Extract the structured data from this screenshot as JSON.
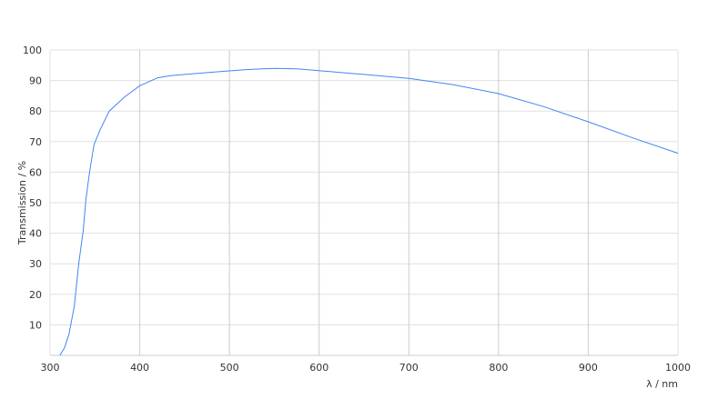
{
  "chart_data": {
    "type": "line",
    "xlabel": "λ / nm",
    "ylabel": "Transmission / %",
    "xlim": [
      300,
      1000
    ],
    "ylim": [
      0,
      100
    ],
    "xticks": [
      300,
      400,
      500,
      600,
      700,
      800,
      900,
      1000
    ],
    "yticks": [
      10,
      20,
      30,
      40,
      50,
      60,
      70,
      80,
      90,
      100
    ],
    "grid": true,
    "line_color": "#4285f4",
    "series": [
      {
        "x": [
          311,
          316,
          321,
          327,
          332,
          337,
          340,
          344,
          349,
          356,
          366,
          383,
          400,
          420,
          434,
          450,
          488,
          520,
          550,
          575,
          600,
          650,
          700,
          750,
          800,
          850,
          900,
          950,
          1000
        ],
        "y": [
          0,
          2.4,
          6.8,
          16,
          30,
          41,
          51,
          60,
          69,
          74,
          80,
          84.6,
          88.3,
          90.9,
          91.6,
          92,
          92.9,
          93.6,
          94,
          93.8,
          93.2,
          92,
          90.7,
          88.6,
          85.7,
          81.5,
          76.5,
          71.2,
          66.2
        ]
      }
    ]
  }
}
